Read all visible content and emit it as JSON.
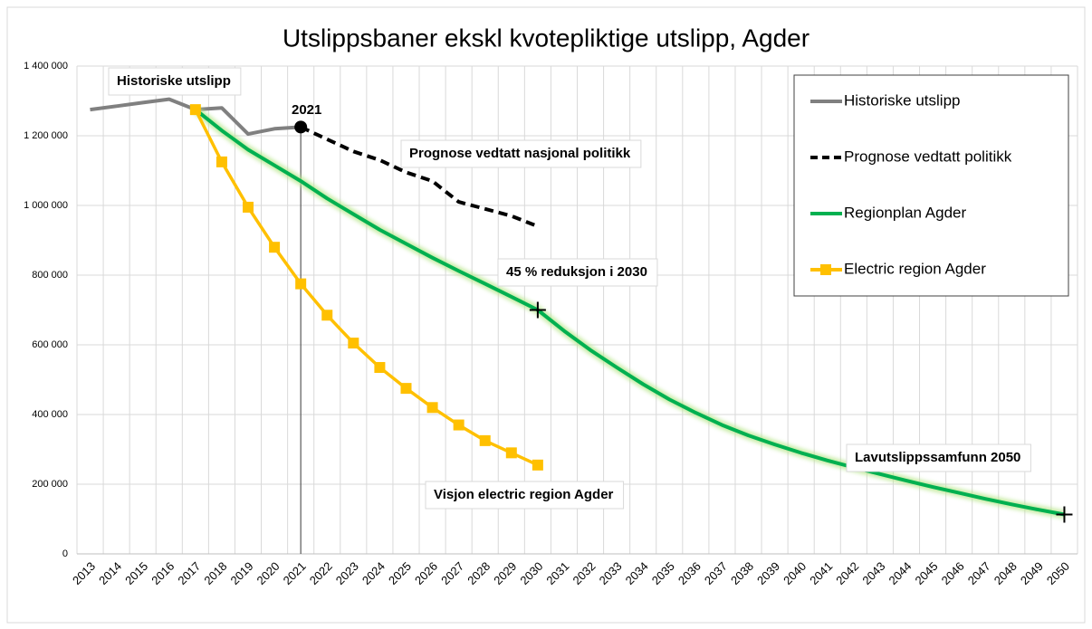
{
  "chart_data": {
    "type": "line",
    "title": "Utslippsbaner ekskl kvotepliktige utslipp, Agder",
    "categories": [
      "2013",
      "2014",
      "2015",
      "2016",
      "2017",
      "2018",
      "2019",
      "2020",
      "2021",
      "2022",
      "2023",
      "2024",
      "2025",
      "2026",
      "2027",
      "2028",
      "2029",
      "2030",
      "2031",
      "2032",
      "2033",
      "2034",
      "2035",
      "2036",
      "2037",
      "2038",
      "2039",
      "2040",
      "2041",
      "2042",
      "2043",
      "2044",
      "2045",
      "2046",
      "2047",
      "2048",
      "2049",
      "2050"
    ],
    "series": [
      {
        "name": "Historiske utslipp",
        "color": "#808080",
        "line_style": "solid",
        "values": [
          1275000,
          1285000,
          1295000,
          1305000,
          1275000,
          1280000,
          1205000,
          1220000,
          1225000,
          null,
          null,
          null,
          null,
          null,
          null,
          null,
          null,
          null,
          null,
          null,
          null,
          null,
          null,
          null,
          null,
          null,
          null,
          null,
          null,
          null,
          null,
          null,
          null,
          null,
          null,
          null,
          null,
          null
        ]
      },
      {
        "name": "Prognose vedtatt politikk",
        "color": "#000000",
        "line_style": "dashed",
        "values": [
          null,
          null,
          null,
          null,
          null,
          null,
          null,
          null,
          1225000,
          1190000,
          1155000,
          1130000,
          1095000,
          1070000,
          1010000,
          990000,
          970000,
          940000,
          null,
          null,
          null,
          null,
          null,
          null,
          null,
          null,
          null,
          null,
          null,
          null,
          null,
          null,
          null,
          null,
          null,
          null,
          null,
          null
        ]
      },
      {
        "name": "Regionplan Agder",
        "color": "#00b050",
        "line_style": "solid",
        "values": [
          null,
          null,
          null,
          null,
          1275000,
          1215000,
          1160000,
          1115000,
          1070000,
          1020000,
          975000,
          930000,
          890000,
          850000,
          812000,
          775000,
          738000,
          700000,
          640000,
          585000,
          535000,
          487000,
          443000,
          405000,
          370000,
          340000,
          314000,
          290000,
          268000,
          248000,
          229000,
          210000,
          192000,
          175000,
          158000,
          142000,
          127000,
          113000
        ]
      },
      {
        "name": "Electric region Agder",
        "color": "#ffc000",
        "line_style": "solid",
        "marker": "square",
        "values": [
          null,
          null,
          null,
          null,
          1275000,
          1125000,
          995000,
          880000,
          775000,
          685000,
          605000,
          535000,
          475000,
          420000,
          370000,
          325000,
          290000,
          255000,
          null,
          null,
          null,
          null,
          null,
          null,
          null,
          null,
          null,
          null,
          null,
          null,
          null,
          null,
          null,
          null,
          null,
          null,
          null,
          null
        ]
      }
    ],
    "ylim": [
      0,
      1400000
    ],
    "yticks": [
      0,
      {
        "value": 200000,
        "label": "200 000"
      },
      {
        "value": 400000,
        "label": "400 000"
      },
      {
        "value": 600000,
        "label": "600 000"
      },
      {
        "value": 800000,
        "label": "800 000"
      },
      {
        "value": 1000000,
        "label": "1 000 000"
      },
      {
        "value": 1200000,
        "label": "1 200 000"
      },
      {
        "value": 1400000,
        "label": "1 400 000"
      }
    ],
    "grid": true,
    "legend": "top-right",
    "annotations": [
      "Historiske utslipp",
      "2021",
      "Prognose vedtatt nasjonal politikk",
      "45 % reduksjon i 2030",
      "Visjon electric region Agder",
      "Lavutslippssamfunn 2050"
    ]
  }
}
